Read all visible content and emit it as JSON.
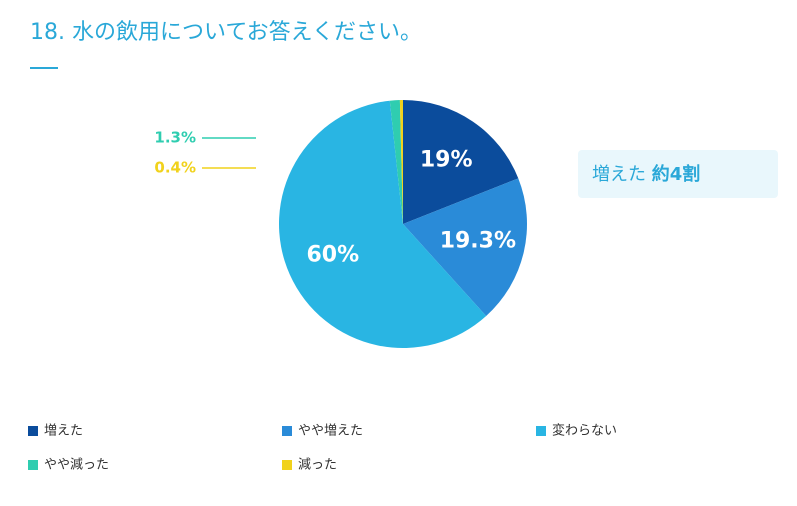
{
  "chart_data": {
    "type": "pie",
    "title": "18. 水の飲用についてお答えください。",
    "categories": [
      "増えた",
      "やや増えた",
      "変わらない",
      "やや減った",
      "減った"
    ],
    "values": [
      19,
      19.3,
      60,
      1.3,
      0.4
    ],
    "value_labels": [
      "19%",
      "19.3%",
      "60%",
      "1.3%",
      "0.4%"
    ],
    "colors": [
      "#0b4c9c",
      "#2a8bd8",
      "#29b5e3",
      "#2fcdb0",
      "#f1d21c"
    ],
    "annotation": {
      "text": "増えた",
      "emphasis": "約4割"
    }
  }
}
